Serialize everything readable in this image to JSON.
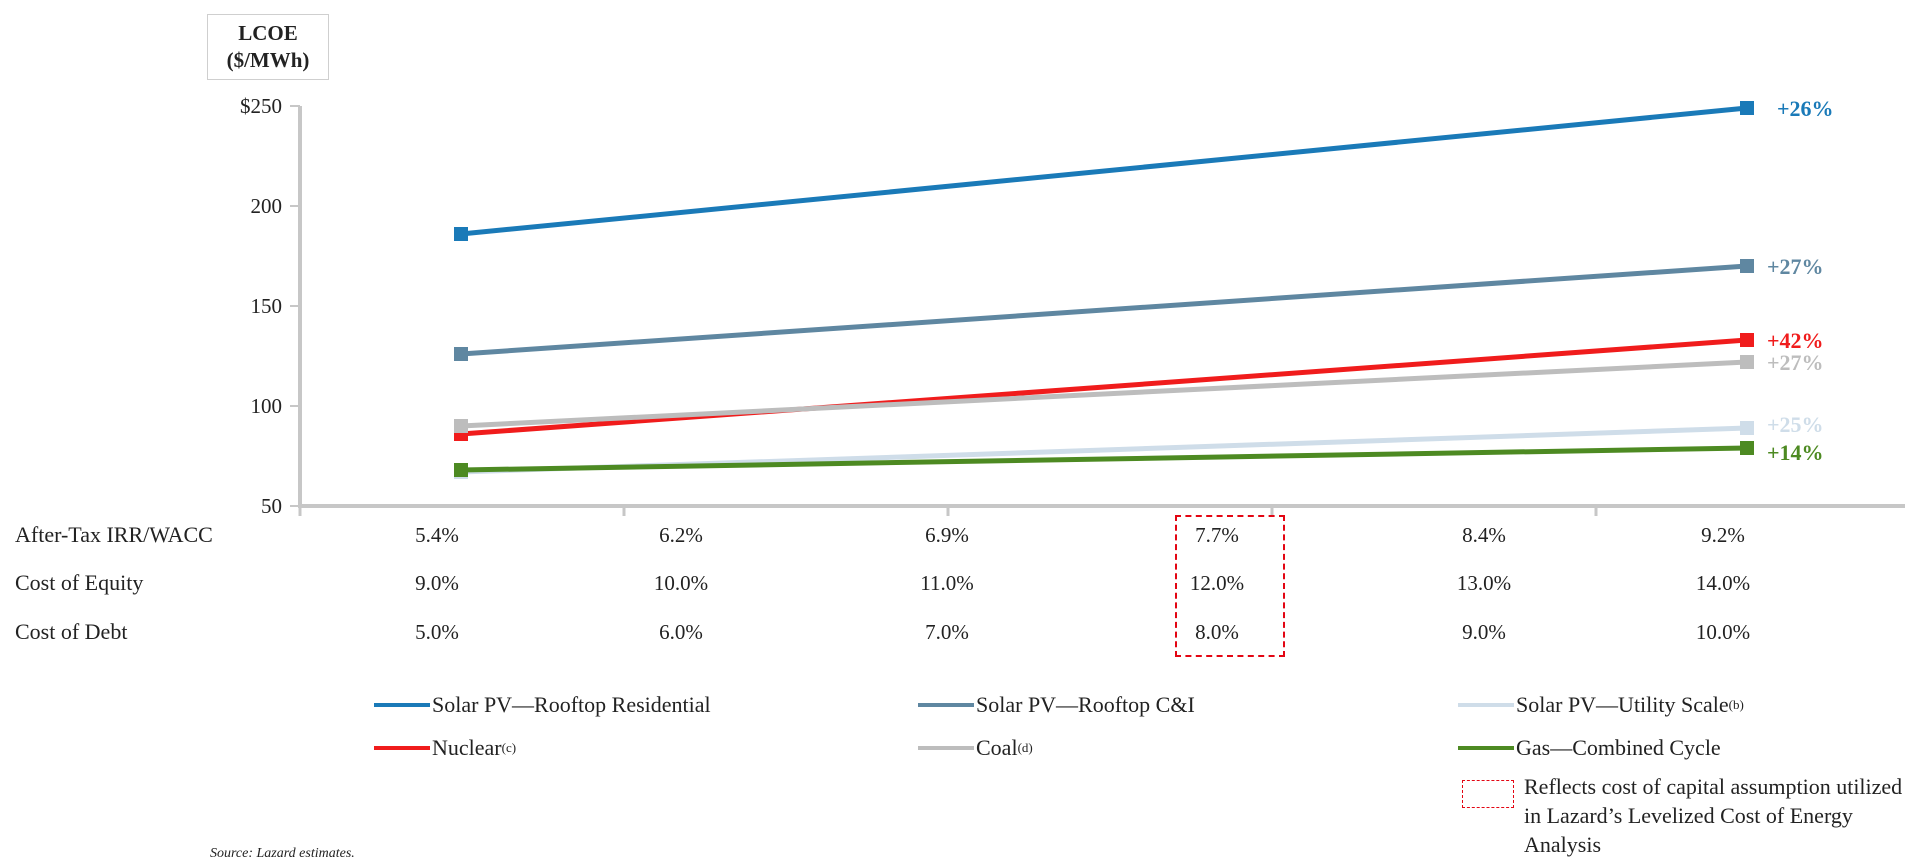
{
  "chart_data": {
    "type": "line",
    "title": "",
    "ylabel_line1": "LCOE",
    "ylabel_line2": "($/MWh)",
    "ylim": [
      50,
      250
    ],
    "y_ticks": [
      "$250",
      "200",
      "150",
      "100",
      "50"
    ],
    "x_positions": 6,
    "series": [
      {
        "name": "Solar PV—Rooftop Residential",
        "color": "#1a7ab8",
        "values": [
          186,
          249
        ],
        "change": "+26%"
      },
      {
        "name": "Solar PV—Rooftop C&I",
        "color": "#5f87a1",
        "values": [
          126,
          170
        ],
        "change": "+27%"
      },
      {
        "name": "Solar PV—Utility Scale",
        "sup": "(b)",
        "color": "#cfdde9",
        "values": [
          67,
          89
        ],
        "change": "+25%"
      },
      {
        "name": "Nuclear",
        "sup": "(c)",
        "color": "#f01c1c",
        "values": [
          86,
          133
        ],
        "change": "+42%"
      },
      {
        "name": "Coal",
        "sup": "(d)",
        "color": "#bdbdbd",
        "values": [
          90,
          122
        ],
        "change": "+27%"
      },
      {
        "name": "Gas—Combined Cycle",
        "color": "#4d8a22",
        "values": [
          68,
          79
        ],
        "change": "+14%"
      }
    ],
    "grid": false,
    "highlight_column": 3
  },
  "table": {
    "rows": [
      {
        "label": "After-Tax IRR/WACC",
        "values": [
          "5.4%",
          "6.2%",
          "6.9%",
          "7.7%",
          "8.4%",
          "9.2%"
        ]
      },
      {
        "label": "Cost of Equity",
        "values": [
          "9.0%",
          "10.0%",
          "11.0%",
          "12.0%",
          "13.0%",
          "14.0%"
        ]
      },
      {
        "label": "Cost of Debt",
        "values": [
          "5.0%",
          "6.0%",
          "7.0%",
          "8.0%",
          "9.0%",
          "10.0%"
        ]
      }
    ]
  },
  "legend": {
    "box_note": "Reflects cost of capital assumption utilized in Lazard’s Levelized Cost of Energy Analysis"
  },
  "source": "Source:   Lazard estimates."
}
